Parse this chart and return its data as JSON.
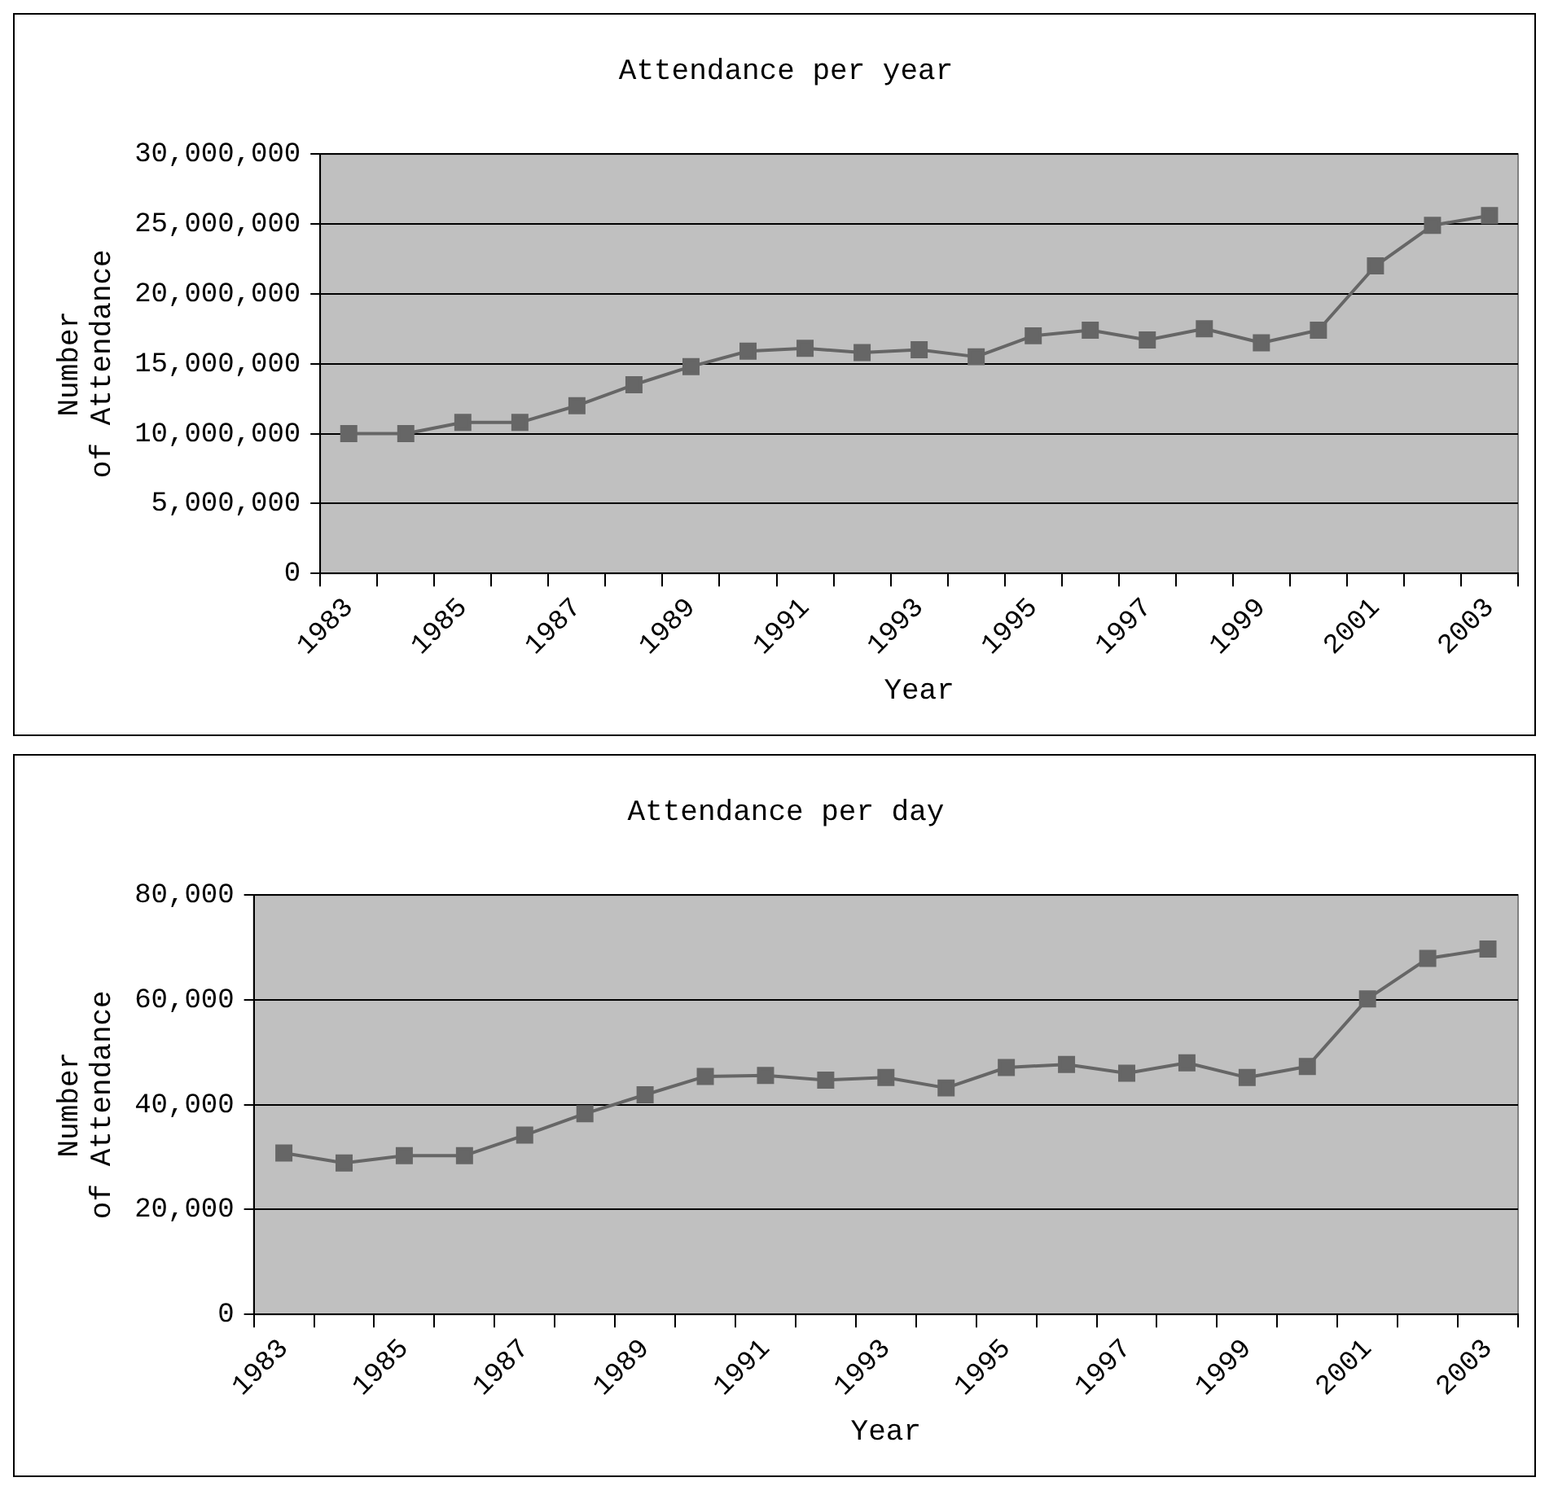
{
  "chart_data": [
    {
      "type": "line",
      "title": "Attendance per year",
      "xlabel": "Year",
      "ylabel": "Number of Attendance",
      "categories": [
        "1983",
        null,
        "1985",
        null,
        "1987",
        null,
        "1989",
        null,
        "1991",
        null,
        "1993",
        null,
        "1995",
        null,
        "1997",
        null,
        "1999",
        null,
        "2001",
        null,
        "2003"
      ],
      "series": [
        {
          "color": "#666666",
          "values": [
            10000000,
            10000000,
            10800000,
            10800000,
            12000000,
            13500000,
            14800000,
            15900000,
            16100000,
            15800000,
            16000000,
            15500000,
            17000000,
            17400000,
            16700000,
            17500000,
            16500000,
            17400000,
            22000000,
            24900000,
            25600000
          ]
        }
      ],
      "ylim": [
        0,
        30000000
      ],
      "yticks": [
        {
          "value": 0,
          "label": "0"
        },
        {
          "value": 5000000,
          "label": "5,000,000"
        },
        {
          "value": 10000000,
          "label": "10,000,000"
        },
        {
          "value": 15000000,
          "label": "15,000,000"
        },
        {
          "value": 20000000,
          "label": "20,000,000"
        },
        {
          "value": 25000000,
          "label": "25,000,000"
        },
        {
          "value": 30000000,
          "label": "30,000,000"
        }
      ],
      "grid": "y",
      "legend": false,
      "marker": "square",
      "line_style": "solid"
    },
    {
      "type": "line",
      "title": "Attendance per day",
      "xlabel": "Year",
      "ylabel": "Number of Attendance",
      "categories": [
        "1983",
        null,
        "1985",
        null,
        "1987",
        null,
        "1989",
        null,
        "1991",
        null,
        "1993",
        null,
        "1995",
        null,
        "1997",
        null,
        "1999",
        null,
        "2001",
        null,
        "2003"
      ],
      "series": [
        {
          "color": "#666666",
          "values": [
            30800,
            28900,
            30300,
            30300,
            34200,
            38300,
            41900,
            45400,
            45600,
            44700,
            45200,
            43200,
            47100,
            47700,
            46000,
            48000,
            45200,
            47300,
            60200,
            67900,
            69700
          ]
        }
      ],
      "ylim": [
        0,
        80000
      ],
      "yticks": [
        {
          "value": 0,
          "label": "0"
        },
        {
          "value": 20000,
          "label": "20,000"
        },
        {
          "value": 40000,
          "label": "40,000"
        },
        {
          "value": 60000,
          "label": "60,000"
        },
        {
          "value": 80000,
          "label": "80,000"
        }
      ],
      "grid": "y",
      "legend": false,
      "marker": "square",
      "line_style": "solid"
    }
  ]
}
